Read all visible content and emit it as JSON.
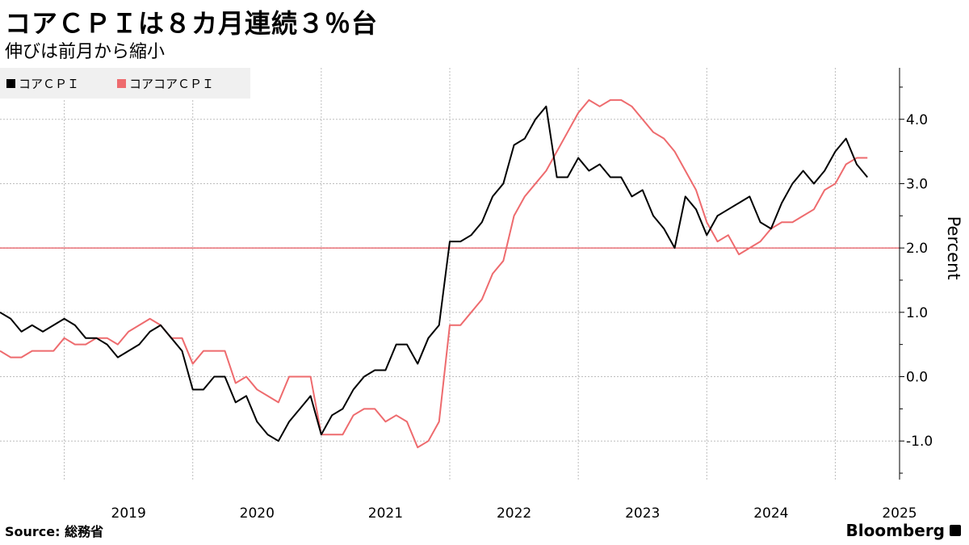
{
  "header": {
    "title": "コアＣＰＩは８カ月連続３％台",
    "subtitle": "伸びは前月から縮小"
  },
  "footer": {
    "source": "Source: 総務省",
    "brand": "Bloomberg"
  },
  "colors": {
    "core_cpi": "#000000",
    "core_core_cpi": "#ee6b6e",
    "reference_line": "#e0303a",
    "grid": "#bdbdbd"
  },
  "chart_data": {
    "type": "line",
    "ylabel": "Percent",
    "ylim": [
      -1.6,
      4.8
    ],
    "yticks": [
      -1.0,
      0.0,
      1.0,
      2.0,
      3.0,
      4.0
    ],
    "ytick_labels": [
      "-1.0",
      "0.0",
      "1.0",
      "2.0",
      "3.0",
      "4.0"
    ],
    "xlim": [
      "2018-07",
      "2025-07"
    ],
    "xticks": [
      "2019",
      "2020",
      "2021",
      "2022",
      "2023",
      "2024",
      "2025"
    ],
    "reference_line": 2.0,
    "legend_position": "top-left",
    "grid": true,
    "series": [
      {
        "name": "コアＣＰＩ",
        "start": "2018-07",
        "values": [
          1.0,
          0.9,
          0.7,
          0.8,
          0.7,
          0.8,
          0.9,
          0.8,
          0.6,
          0.6,
          0.5,
          0.3,
          0.4,
          0.5,
          0.7,
          0.8,
          0.6,
          0.4,
          -0.2,
          -0.2,
          0.0,
          0.0,
          -0.4,
          -0.3,
          -0.7,
          -0.9,
          -1.0,
          -0.7,
          -0.5,
          -0.3,
          -0.9,
          -0.6,
          -0.5,
          -0.2,
          0.0,
          0.1,
          0.1,
          0.5,
          0.5,
          0.2,
          0.6,
          0.8,
          2.1,
          2.1,
          2.2,
          2.4,
          2.8,
          3.0,
          3.6,
          3.7,
          4.0,
          4.2,
          3.1,
          3.1,
          3.4,
          3.2,
          3.3,
          3.1,
          3.1,
          2.8,
          2.9,
          2.5,
          2.3,
          2.0,
          2.8,
          2.6,
          2.2,
          2.5,
          2.6,
          2.7,
          2.8,
          2.4,
          2.3,
          2.7,
          3.0,
          3.2,
          3.0,
          3.2,
          3.5,
          3.7,
          3.3,
          3.1
        ]
      },
      {
        "name": "コアコアＣＰＩ",
        "start": "2018-07",
        "values": [
          0.4,
          0.3,
          0.3,
          0.4,
          0.4,
          0.4,
          0.6,
          0.5,
          0.5,
          0.6,
          0.6,
          0.5,
          0.7,
          0.8,
          0.9,
          0.8,
          0.6,
          0.6,
          0.2,
          0.4,
          0.4,
          0.4,
          -0.1,
          0.0,
          -0.2,
          -0.3,
          -0.4,
          0.0,
          0.0,
          0.0,
          -0.9,
          -0.9,
          -0.9,
          -0.6,
          -0.5,
          -0.5,
          -0.7,
          -0.6,
          -0.7,
          -1.1,
          -1.0,
          -0.7,
          0.8,
          0.8,
          1.0,
          1.2,
          1.6,
          1.8,
          2.5,
          2.8,
          3.0,
          3.2,
          3.5,
          3.8,
          4.1,
          4.3,
          4.2,
          4.3,
          4.3,
          4.2,
          4.0,
          3.8,
          3.7,
          3.5,
          3.2,
          2.9,
          2.4,
          2.1,
          2.2,
          1.9,
          2.0,
          2.1,
          2.3,
          2.4,
          2.4,
          2.5,
          2.6,
          2.9,
          3.0,
          3.3,
          3.4,
          3.4
        ]
      }
    ]
  }
}
